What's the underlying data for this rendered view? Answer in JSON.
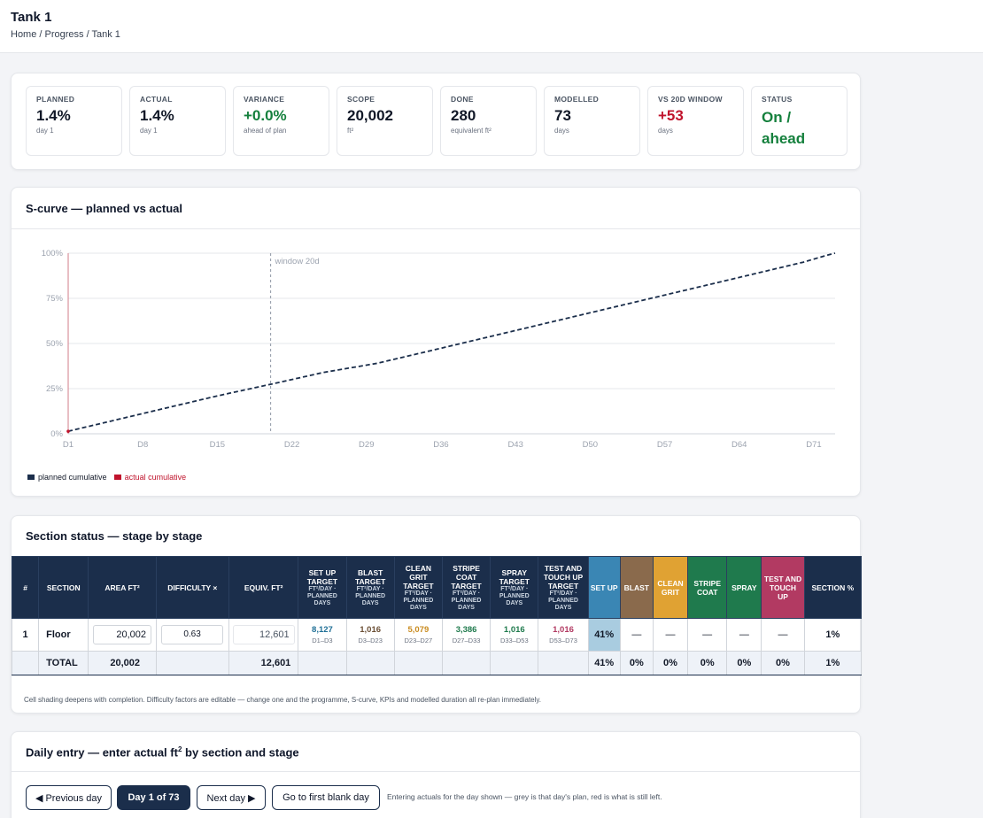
{
  "header": {
    "title": "Tank 1",
    "breadcrumb": "Home / Progress / Tank 1"
  },
  "kpis": [
    {
      "label": "PLANNED",
      "value": "1.4%",
      "sub": "day 1",
      "color": "#111827"
    },
    {
      "label": "ACTUAL",
      "value": "1.4%",
      "sub": "day 1",
      "color": "#111827"
    },
    {
      "label": "VARIANCE",
      "value": "+0.0%",
      "sub": "ahead of plan",
      "color": "#15803d"
    },
    {
      "label": "SCOPE",
      "value": "20,002",
      "sub": "ft²",
      "color": "#111827"
    },
    {
      "label": "DONE",
      "value": "280",
      "sub": "equivalent ft²",
      "color": "#111827"
    },
    {
      "label": "MODELLED",
      "value": "73",
      "sub": "days",
      "color": "#111827"
    },
    {
      "label": "VS 20D WINDOW",
      "value": "+53",
      "sub": "days",
      "color": "#c0132c"
    },
    {
      "label": "STATUS",
      "value": "On / ahead",
      "sub": "",
      "color": "#15803d"
    }
  ],
  "scurve": {
    "title": "S-curve — planned vs actual",
    "window_label": "window 20d",
    "legend_planned": "planned cumulative",
    "legend_actual": "actual cumulative"
  },
  "chart_data": {
    "type": "line",
    "title": "S-curve — planned vs actual",
    "x_ticks": [
      "D1",
      "D8",
      "D15",
      "D22",
      "D29",
      "D36",
      "D43",
      "D50",
      "D57",
      "D64",
      "D71"
    ],
    "y_ticks": [
      "0%",
      "25%",
      "50%",
      "75%",
      "100%"
    ],
    "ylim": [
      0,
      100
    ],
    "xlim": [
      1,
      73
    ],
    "window_day": 20,
    "series": [
      {
        "name": "planned cumulative",
        "color": "#1b2e4b",
        "dashed": true,
        "x": [
          1,
          5,
          10,
          15,
          20,
          25,
          30,
          35,
          40,
          45,
          50,
          55,
          60,
          65,
          70,
          72,
          73
        ],
        "y": [
          1.4,
          7,
          14,
          21,
          27.4,
          34,
          39,
          46,
          53,
          60,
          67,
          74,
          81,
          88,
          95,
          98.5,
          100
        ]
      },
      {
        "name": "actual cumulative",
        "color": "#c0132c",
        "dashed": false,
        "x": [
          1
        ],
        "y": [
          1.4
        ]
      }
    ],
    "grid": true,
    "legend": "bottom-left"
  },
  "status": {
    "title": "Section status — stage by stage",
    "headers": {
      "num": "#",
      "section": "SECTION",
      "area": "AREA FT²",
      "difficulty": "DIFFICULTY ×",
      "equiv": "EQUIV. FT²",
      "setup_t": "SET UP TARGET",
      "blast_t": "BLAST TARGET",
      "clean_t": "CLEAN GRIT TARGET",
      "stripe_t": "STRIPE COAT TARGET",
      "spray_t": "SPRAY TARGET",
      "test_t": "TEST AND TOUCH UP TARGET",
      "t_sub": "FT²/DAY · PLANNED DAYS",
      "setup": "SET UP",
      "blast": "BLAST",
      "clean": "CLEAN GRIT",
      "stripe": "STRIPE COAT",
      "spray": "SPRAY",
      "test": "TEST AND TOUCH UP",
      "pct": "SECTION %"
    },
    "stage_colors": {
      "setup": "#3a86b4",
      "blast": "#8a6a4c",
      "clean": "#e0a233",
      "stripe": "#1f7a4d",
      "spray": "#1f7a4d",
      "test": "#b23a62"
    },
    "row": {
      "num": "1",
      "section": "Floor",
      "area": "20,002",
      "difficulty": "0.63",
      "equiv": "12,601",
      "targets": [
        {
          "val": "8,127",
          "days": "D1–D3",
          "color": "#1f6f96"
        },
        {
          "val": "1,016",
          "days": "D3–D23",
          "color": "#6b4f35"
        },
        {
          "val": "5,079",
          "days": "D23–D27",
          "color": "#c98b1f"
        },
        {
          "val": "3,386",
          "days": "D27–D33",
          "color": "#1f7a4d"
        },
        {
          "val": "1,016",
          "days": "D33–D53",
          "color": "#1f7a4d"
        },
        {
          "val": "1,016",
          "days": "D53–D73",
          "color": "#b23a62"
        }
      ],
      "stages": [
        "41%",
        "—",
        "—",
        "—",
        "—",
        "—"
      ],
      "pct": "1%"
    },
    "total": {
      "label": "TOTAL",
      "area": "20,002",
      "equiv": "12,601",
      "stages": [
        "41%",
        "0%",
        "0%",
        "0%",
        "0%",
        "0%"
      ],
      "pct": "1%"
    },
    "note": "Cell shading deepens with completion. Difficulty factors are editable — change one and the programme, S-curve, KPIs and modelled duration all re-plan immediately."
  },
  "entry": {
    "title": "Daily entry — enter actual ft",
    "title_sup": "2",
    "title_rest": " by section and stage",
    "prev": "◀ Previous day",
    "day": "Day 1 of 73",
    "next": "Next day ▶",
    "first_blank": "Go to first blank day",
    "help": "Entering actuals for the day shown — grey is that day's plan, red is what is still left."
  }
}
